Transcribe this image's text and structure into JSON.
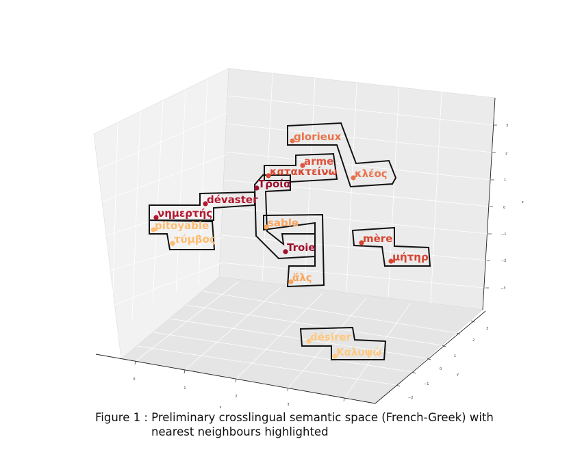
{
  "chart_data": {
    "type": "scatter3d",
    "xlabel": "x",
    "ylabel": "y",
    "zlabel": "z",
    "x_ticks": [
      "0",
      "1",
      "2",
      "3"
    ],
    "y_ticks": [
      "−2",
      "−1",
      "0",
      "1",
      "2",
      "3"
    ],
    "z_ticks": [
      "3",
      "2",
      "1",
      "0",
      "−1",
      "−2",
      "−3"
    ],
    "grid": true,
    "points": [
      {
        "label": "glorieux",
        "color": "#e8734a"
      },
      {
        "label": "arme",
        "color": "#e0533d"
      },
      {
        "label": "κατακτείνω",
        "color": "#d8472f"
      },
      {
        "label": "κλέος",
        "color": "#e8734a"
      },
      {
        "label": "Τροία",
        "color": "#9e0f2e"
      },
      {
        "label": "dévaster",
        "color": "#b5172f"
      },
      {
        "label": "νημερτής",
        "color": "#b5172f"
      },
      {
        "label": "pitoyable",
        "color": "#fdbc70"
      },
      {
        "label": "τύμβος",
        "color": "#fdbc70"
      },
      {
        "label": "sable",
        "color": "#fba45c"
      },
      {
        "label": "Troie",
        "color": "#9e0f2e"
      },
      {
        "label": "ἅλς",
        "color": "#fba45c"
      },
      {
        "label": "mère",
        "color": "#d8432f"
      },
      {
        "label": "μήτηρ",
        "color": "#d8432f"
      },
      {
        "label": "désirer",
        "color": "#fec980"
      },
      {
        "label": "Καλυψώ",
        "color": "#fec980"
      }
    ],
    "groups": [
      [
        "glorieux",
        "κλέος"
      ],
      [
        "arme",
        "κατακτείνω"
      ],
      [
        "dévaster",
        "νημερτής"
      ],
      [
        "pitoyable",
        "τύμβος"
      ],
      [
        "Τροία",
        "Troie"
      ],
      [
        "sable",
        "ἅλς"
      ],
      [
        "mère",
        "μήτηρ"
      ],
      [
        "désirer",
        "Καλυψώ"
      ]
    ]
  },
  "caption": {
    "line1": "Figure 1 : Preliminary crosslingual semantic space (French-Greek) with",
    "line2": "nearest neighbours highlighted"
  }
}
